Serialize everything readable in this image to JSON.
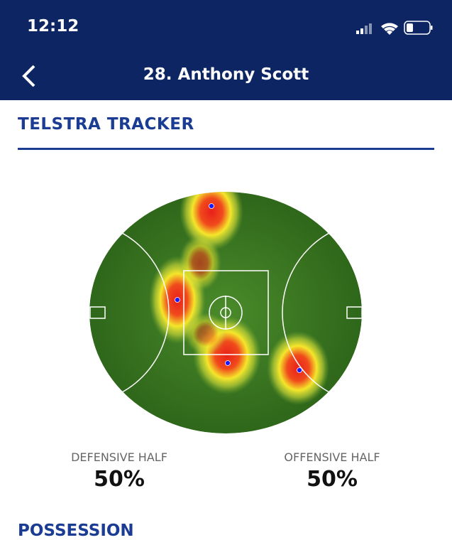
{
  "status_bar": {
    "time": "12:12"
  },
  "header": {
    "title": "28. Anthony Scott"
  },
  "section": {
    "title": "TELSTRA TRACKER"
  },
  "stats": [
    {
      "label": "DEFENSIVE HALF",
      "value": "50%"
    },
    {
      "label": "OFFENSIVE HALF",
      "value": "50%"
    }
  ],
  "next_section": {
    "title": "POSSESSION"
  }
}
